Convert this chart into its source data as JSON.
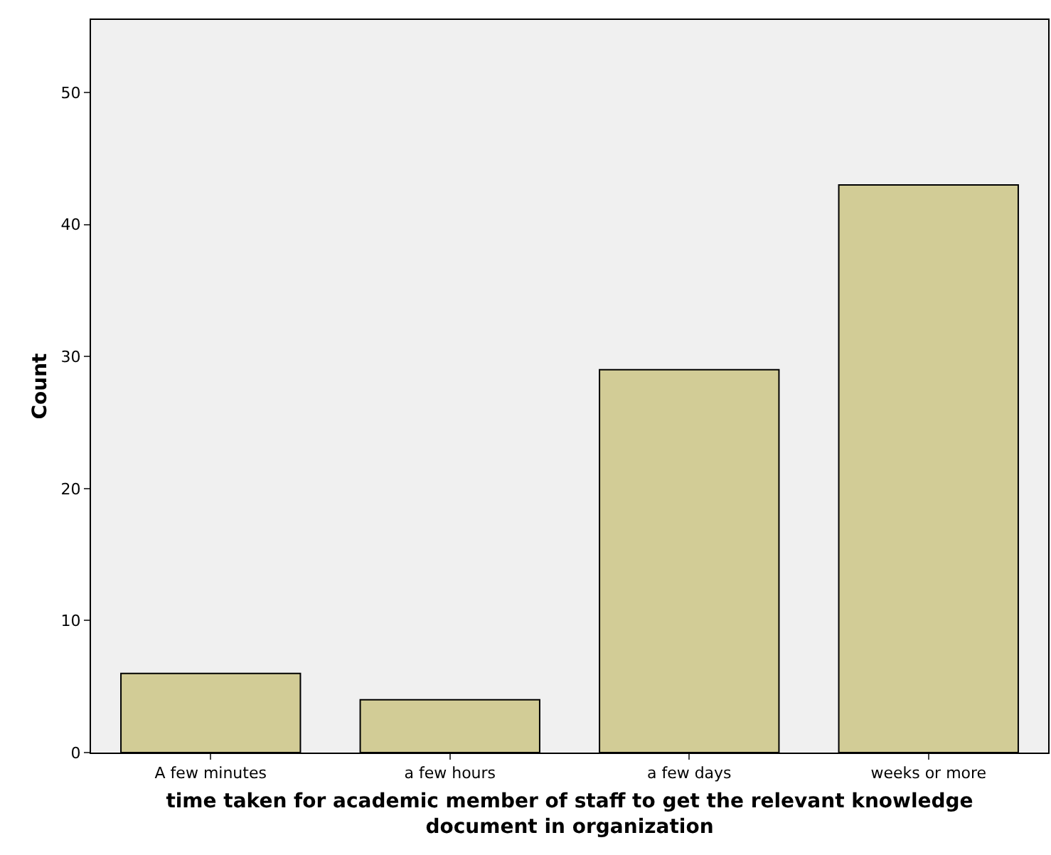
{
  "chart_data": {
    "type": "bar",
    "xlabel": "time taken for academic member of staff to get the relevant knowledge document in organization",
    "ylabel": "Count",
    "categories": [
      "A few minutes",
      "a few hours",
      "a few days",
      "weeks or more"
    ],
    "values": [
      6,
      4,
      29,
      43
    ],
    "color": "#d2cc96",
    "ylim": [
      0,
      55.5
    ],
    "yticks": [
      0,
      10,
      20,
      30,
      40,
      50
    ],
    "grid": false,
    "legend": false
  }
}
